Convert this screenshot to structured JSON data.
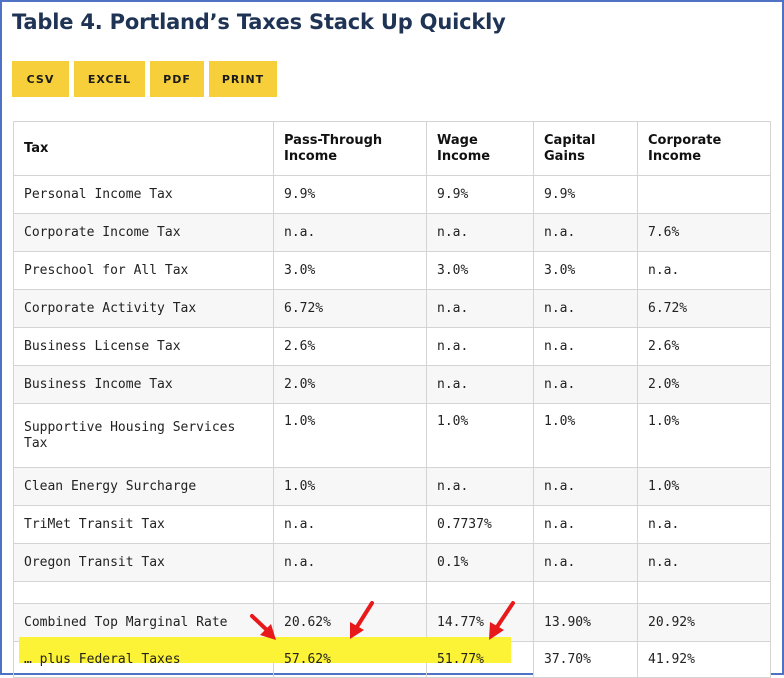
{
  "title": "Table 4. Portland’s Taxes Stack Up Quickly",
  "toolbar": {
    "csv": "CSV",
    "excel": "EXCEL",
    "pdf": "PDF",
    "print": "PRINT"
  },
  "table": {
    "headers": {
      "tax": "Tax",
      "pass_through_1": "Pass-Through",
      "pass_through_2": "Income",
      "wage_1": "Wage",
      "wage_2": "Income",
      "capital_1": "Capital",
      "capital_2": "Gains",
      "corporate_1": "Corporate",
      "corporate_2": "Income"
    },
    "rows": [
      {
        "tax": "Personal Income Tax",
        "pass": "9.9%",
        "wage": "9.9%",
        "capital": "9.9%",
        "corp": ""
      },
      {
        "tax": "Corporate Income Tax",
        "pass": "n.a.",
        "wage": "n.a.",
        "capital": "n.a.",
        "corp": "7.6%"
      },
      {
        "tax": "Preschool for All Tax",
        "pass": "3.0%",
        "wage": "3.0%",
        "capital": "3.0%",
        "corp": "n.a."
      },
      {
        "tax": "Corporate Activity Tax",
        "pass": "6.72%",
        "wage": "n.a.",
        "capital": "n.a.",
        "corp": "6.72%"
      },
      {
        "tax": "Business License Tax",
        "pass": "2.6%",
        "wage": "n.a.",
        "capital": "n.a.",
        "corp": "2.6%"
      },
      {
        "tax": "Business Income Tax",
        "pass": "2.0%",
        "wage": "n.a.",
        "capital": "n.a.",
        "corp": "2.0%"
      },
      {
        "tax_1": "Supportive Housing Services",
        "tax_2": "Tax",
        "pass": "1.0%",
        "wage": "1.0%",
        "capital": "1.0%",
        "corp": "1.0%"
      },
      {
        "tax": "Clean Energy Surcharge",
        "pass": "1.0%",
        "wage": "n.a.",
        "capital": "n.a.",
        "corp": "1.0%"
      },
      {
        "tax": "TriMet Transit Tax",
        "pass": "n.a.",
        "wage": "0.7737%",
        "capital": "n.a.",
        "corp": "n.a."
      },
      {
        "tax": "Oregon Transit Tax",
        "pass": "n.a.",
        "wage": "0.1%",
        "capital": "n.a.",
        "corp": "n.a."
      },
      {
        "tax": "Combined Top Marginal Rate",
        "pass": "20.62%",
        "wage": "14.77%",
        "capital": "13.90%",
        "corp": "20.92%"
      },
      {
        "tax": "… plus Federal Taxes",
        "pass": "57.62%",
        "wage": "51.77%",
        "capital": "37.70%",
        "corp": "41.92%"
      }
    ]
  },
  "colors": {
    "title": "#1f3355",
    "button": "#f6cf3a",
    "highlight": "#fcf336",
    "arrow": "#e8191b",
    "frame": "#4f72c4"
  }
}
